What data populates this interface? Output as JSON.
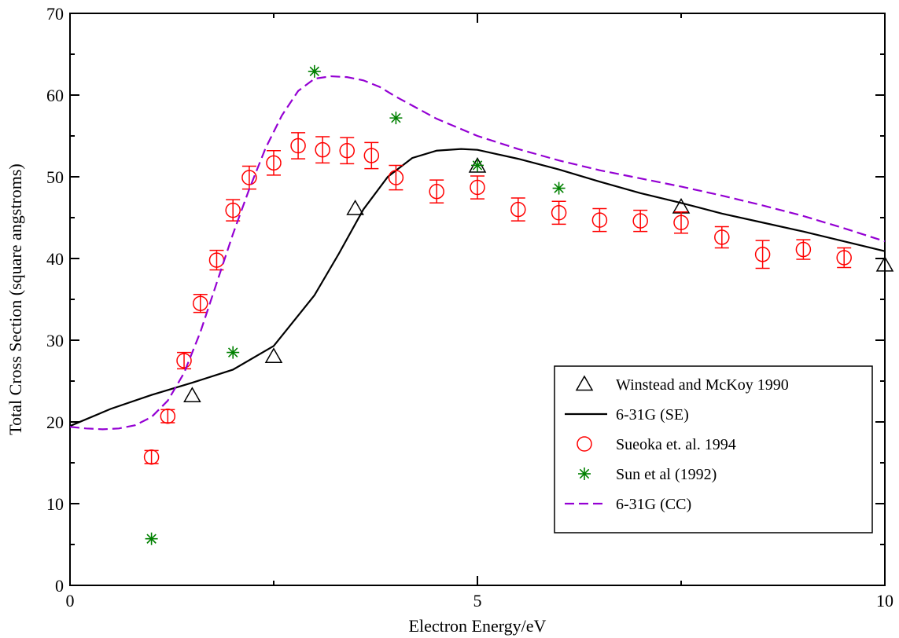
{
  "chart_data": {
    "type": "scatter",
    "xlabel": "Electron Energy/eV",
    "ylabel": "Total Cross Section (square angstroms)",
    "xlim": [
      0,
      10
    ],
    "ylim": [
      0,
      70
    ],
    "xticks": [
      0,
      5,
      10
    ],
    "yticks": [
      0,
      10,
      20,
      30,
      40,
      50,
      60,
      70
    ],
    "grid": false,
    "legend_position": "bottom-right",
    "series": [
      {
        "name": "Winstead and McKoy 1990",
        "kind": "markers",
        "marker": "triangle",
        "color": "#000000",
        "x": [
          1.5,
          2.5,
          3.5,
          5.0,
          7.5,
          10.0
        ],
        "y": [
          23.2,
          28.0,
          46.1,
          51.3,
          46.3,
          39.2
        ]
      },
      {
        "name": "6-31G (SE)",
        "kind": "line",
        "style": "solid",
        "color": "#000000",
        "x": [
          0.0,
          0.5,
          1.0,
          1.5,
          2.0,
          2.5,
          3.0,
          3.3,
          3.6,
          3.9,
          4.2,
          4.5,
          4.8,
          5.0,
          5.5,
          6.0,
          6.5,
          7.0,
          7.5,
          8.0,
          8.5,
          9.0,
          9.5,
          10.0
        ],
        "y": [
          19.5,
          21.6,
          23.3,
          24.8,
          26.4,
          29.3,
          35.5,
          40.6,
          46.0,
          50.0,
          52.3,
          53.2,
          53.4,
          53.3,
          52.2,
          50.9,
          49.4,
          48.0,
          46.8,
          45.5,
          44.4,
          43.3,
          42.1,
          40.9
        ]
      },
      {
        "name": "Sueoka et. al. 1994",
        "kind": "markers_errorbars",
        "marker": "circle",
        "color": "#ff0000",
        "x": [
          1.0,
          1.2,
          1.4,
          1.6,
          1.8,
          2.0,
          2.2,
          2.5,
          2.8,
          3.1,
          3.4,
          3.7,
          4.0,
          4.5,
          5.0,
          5.5,
          6.0,
          6.5,
          7.0,
          7.5,
          8.0,
          8.5,
          9.0,
          9.5
        ],
        "y": [
          15.7,
          20.7,
          27.5,
          34.5,
          39.8,
          45.9,
          49.9,
          51.7,
          53.8,
          53.3,
          53.2,
          52.6,
          49.9,
          48.2,
          48.7,
          46.0,
          45.6,
          44.7,
          44.6,
          44.4,
          42.6,
          40.5,
          41.1,
          40.1
        ],
        "yerr": [
          0.8,
          0.8,
          1.0,
          1.1,
          1.2,
          1.3,
          1.4,
          1.5,
          1.6,
          1.6,
          1.6,
          1.6,
          1.5,
          1.4,
          1.4,
          1.4,
          1.4,
          1.4,
          1.3,
          1.3,
          1.3,
          1.7,
          1.2,
          1.2
        ]
      },
      {
        "name": "Sun et al (1992)",
        "kind": "markers",
        "marker": "asterisk",
        "color": "#008000",
        "x": [
          1.0,
          2.0,
          3.0,
          4.0,
          5.0,
          6.0
        ],
        "y": [
          5.7,
          28.5,
          62.9,
          57.2,
          51.4,
          48.6
        ]
      },
      {
        "name": "6-31G (CC)",
        "kind": "line",
        "style": "dashed",
        "color": "#9400d3",
        "x": [
          0.0,
          0.2,
          0.4,
          0.6,
          0.8,
          1.0,
          1.2,
          1.4,
          1.6,
          1.8,
          2.0,
          2.2,
          2.4,
          2.6,
          2.8,
          3.0,
          3.2,
          3.4,
          3.6,
          3.8,
          4.0,
          4.5,
          5.0,
          5.5,
          6.0,
          6.5,
          7.0,
          7.5,
          8.0,
          8.5,
          9.0,
          9.5,
          10.0
        ],
        "y": [
          19.4,
          19.2,
          19.1,
          19.2,
          19.6,
          20.6,
          22.6,
          26.0,
          31.0,
          37.0,
          43.0,
          48.5,
          53.5,
          57.5,
          60.5,
          62.0,
          62.3,
          62.2,
          61.8,
          61.0,
          59.8,
          57.1,
          55.0,
          53.4,
          52.0,
          50.8,
          49.8,
          48.8,
          47.7,
          46.5,
          45.2,
          43.7,
          42.1
        ]
      }
    ]
  }
}
